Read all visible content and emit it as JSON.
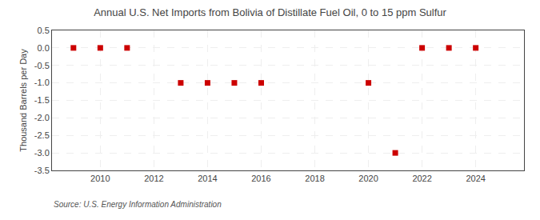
{
  "chart_data": {
    "type": "scatter",
    "title": "Annual U.S. Net Imports from Bolivia of Distillate Fuel Oil, 0 to 15 ppm Sulfur",
    "y_label": "Thousand Barrels per Day",
    "annotations": [
      "Source: U.S. Energy Information Administration"
    ],
    "x": [
      2009,
      2010,
      2011,
      2013,
      2014,
      2015,
      2016,
      2020,
      2021,
      2022,
      2023,
      2024
    ],
    "values": [
      0,
      0,
      0,
      -1,
      -1,
      -1,
      -1,
      -1,
      -3,
      0,
      0,
      0
    ],
    "color": "#cc0000",
    "marker": "square",
    "xlim": [
      2008.2,
      2025.8
    ],
    "ylim": [
      -3.5,
      0.5
    ],
    "xticks": [
      2010,
      2012,
      2014,
      2016,
      2018,
      2020,
      2022,
      2024
    ],
    "yticks": [
      0.5,
      {
        "value": 0,
        "label": "0.0"
      },
      -0.5,
      {
        "value": -1,
        "label": "-1.0"
      },
      -1.5,
      {
        "value": -2,
        "label": "-2.0"
      },
      -2.5,
      {
        "value": -3,
        "label": "-3.0"
      },
      -3.5
    ],
    "grid": true
  }
}
